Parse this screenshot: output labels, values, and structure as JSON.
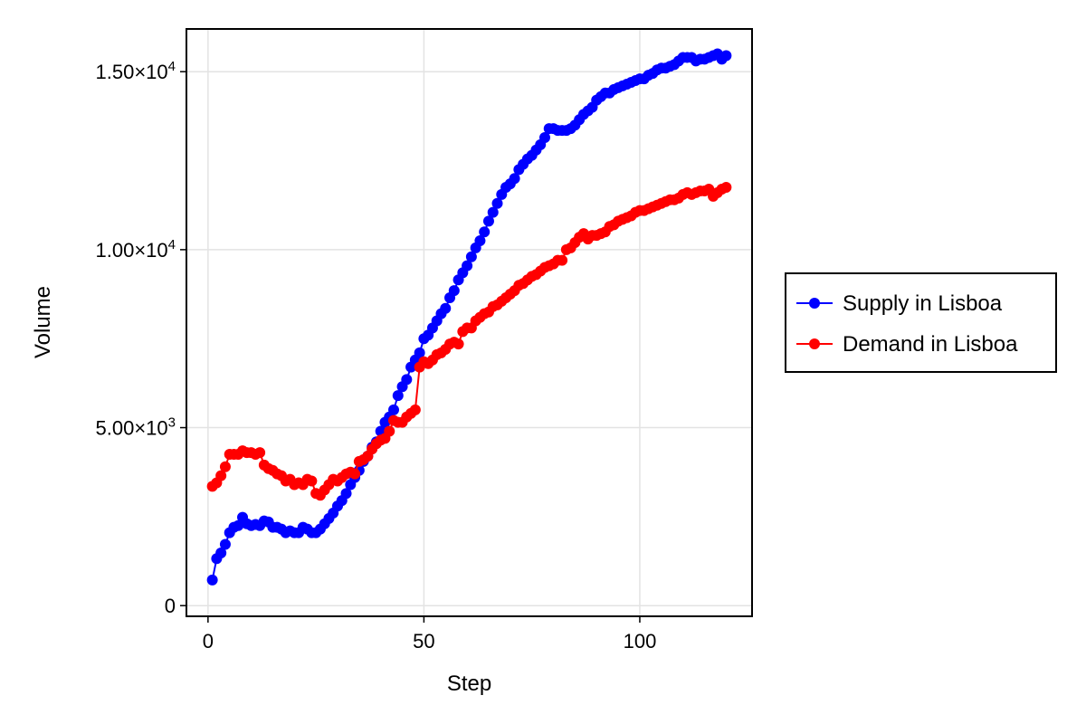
{
  "chart_data": {
    "type": "line",
    "xlabel": "Step",
    "ylabel": "Volume",
    "xlim": [
      -5,
      126
    ],
    "ylim": [
      -300,
      16200
    ],
    "x_ticks": [
      {
        "value": 0,
        "label": "0"
      },
      {
        "value": 50,
        "label": "50"
      },
      {
        "value": 100,
        "label": "100"
      }
    ],
    "y_ticks": [
      {
        "value": 0,
        "label": "0",
        "exp": ""
      },
      {
        "value": 5000,
        "label": "5.00×10",
        "exp": "3"
      },
      {
        "value": 10000,
        "label": "1.00×10",
        "exp": "4"
      },
      {
        "value": 15000,
        "label": "1.50×10",
        "exp": "4"
      }
    ],
    "grid": true,
    "legend_position": "right",
    "series": [
      {
        "name": "Supply in Lisboa",
        "color": "#0000ff",
        "x": [
          1,
          2,
          3,
          4,
          5,
          6,
          7,
          8,
          9,
          10,
          11,
          12,
          13,
          14,
          15,
          16,
          17,
          18,
          19,
          20,
          21,
          22,
          23,
          24,
          25,
          26,
          27,
          28,
          29,
          30,
          31,
          32,
          33,
          34,
          35,
          36,
          37,
          38,
          39,
          40,
          41,
          42,
          43,
          44,
          45,
          46,
          47,
          48,
          49,
          50,
          51,
          52,
          53,
          54,
          55,
          56,
          57,
          58,
          59,
          60,
          61,
          62,
          63,
          64,
          65,
          66,
          67,
          68,
          69,
          70,
          71,
          72,
          73,
          74,
          75,
          76,
          77,
          78,
          79,
          80,
          81,
          82,
          83,
          84,
          85,
          86,
          87,
          88,
          89,
          90,
          91,
          92,
          93,
          94,
          95,
          96,
          97,
          98,
          99,
          100,
          101,
          102,
          103,
          104,
          105,
          106,
          107,
          108,
          109,
          110,
          111,
          112,
          113,
          114,
          115,
          116,
          117,
          118,
          119,
          120
        ],
        "y": [
          720,
          1320,
          1480,
          1720,
          2050,
          2200,
          2250,
          2480,
          2300,
          2250,
          2280,
          2250,
          2380,
          2350,
          2200,
          2200,
          2150,
          2050,
          2100,
          2050,
          2050,
          2200,
          2150,
          2050,
          2050,
          2150,
          2300,
          2450,
          2600,
          2800,
          2950,
          3150,
          3400,
          3600,
          3800,
          4050,
          4200,
          4450,
          4600,
          4900,
          5150,
          5300,
          5500,
          5900,
          6150,
          6350,
          6700,
          6900,
          7100,
          7500,
          7600,
          7800,
          8000,
          8200,
          8350,
          8650,
          8850,
          9150,
          9350,
          9550,
          9800,
          10050,
          10250,
          10500,
          10800,
          11050,
          11300,
          11550,
          11750,
          11850,
          12000,
          12250,
          12400,
          12550,
          12650,
          12800,
          12950,
          13150,
          13400,
          13400,
          13350,
          13350,
          13350,
          13400,
          13500,
          13650,
          13800,
          13900,
          14000,
          14200,
          14300,
          14400,
          14400,
          14500,
          14550,
          14600,
          14650,
          14700,
          14750,
          14800,
          14800,
          14900,
          14950,
          15050,
          15100,
          15100,
          15150,
          15200,
          15300,
          15400,
          15400,
          15400,
          15300,
          15350,
          15350,
          15400,
          15450,
          15500,
          15350,
          15450
        ]
      },
      {
        "name": "Demand in Lisboa",
        "color": "#ff0000",
        "x": [
          1,
          2,
          3,
          4,
          5,
          6,
          7,
          8,
          9,
          10,
          11,
          12,
          13,
          14,
          15,
          16,
          17,
          18,
          19,
          20,
          21,
          22,
          23,
          24,
          25,
          26,
          27,
          28,
          29,
          30,
          31,
          32,
          33,
          34,
          35,
          36,
          37,
          38,
          39,
          40,
          41,
          42,
          43,
          44,
          45,
          46,
          47,
          48,
          49,
          50,
          51,
          52,
          53,
          54,
          55,
          56,
          57,
          58,
          59,
          60,
          61,
          62,
          63,
          64,
          65,
          66,
          67,
          68,
          69,
          70,
          71,
          72,
          73,
          74,
          75,
          76,
          77,
          78,
          79,
          80,
          81,
          82,
          83,
          84,
          85,
          86,
          87,
          88,
          89,
          90,
          91,
          92,
          93,
          94,
          95,
          96,
          97,
          98,
          99,
          100,
          101,
          102,
          103,
          104,
          105,
          106,
          107,
          108,
          109,
          110,
          111,
          112,
          113,
          114,
          115,
          116,
          117,
          118,
          119,
          120
        ],
        "y": [
          3350,
          3450,
          3650,
          3900,
          4250,
          4250,
          4250,
          4350,
          4300,
          4300,
          4250,
          4300,
          3950,
          3850,
          3800,
          3700,
          3650,
          3500,
          3550,
          3400,
          3450,
          3400,
          3550,
          3500,
          3150,
          3100,
          3250,
          3400,
          3550,
          3500,
          3600,
          3700,
          3750,
          3700,
          4050,
          4100,
          4200,
          4400,
          4550,
          4650,
          4700,
          4900,
          5200,
          5150,
          5150,
          5300,
          5400,
          5500,
          6700,
          6850,
          6800,
          6900,
          7050,
          7100,
          7200,
          7350,
          7400,
          7350,
          7700,
          7800,
          7800,
          8000,
          8100,
          8200,
          8250,
          8400,
          8450,
          8550,
          8650,
          8750,
          8850,
          9000,
          9050,
          9150,
          9250,
          9300,
          9400,
          9500,
          9550,
          9600,
          9700,
          9700,
          10000,
          10050,
          10200,
          10350,
          10450,
          10300,
          10400,
          10400,
          10450,
          10500,
          10650,
          10700,
          10800,
          10850,
          10900,
          10950,
          11050,
          11100,
          11100,
          11150,
          11200,
          11250,
          11300,
          11350,
          11400,
          11400,
          11450,
          11550,
          11600,
          11550,
          11600,
          11650,
          11650,
          11700,
          11500,
          11600,
          11700,
          11750
        ]
      }
    ]
  }
}
